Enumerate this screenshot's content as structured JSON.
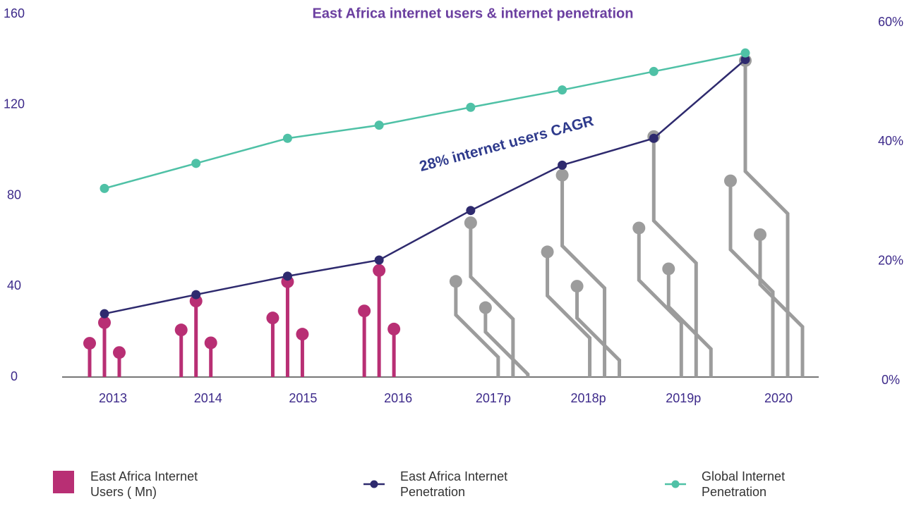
{
  "chart_data": {
    "type": "lollipop-line",
    "title": "East Africa internet users & internet penetration",
    "annotation": "28% internet users CAGR",
    "categories": [
      "2013",
      "2014",
      "2015",
      "2016",
      "2017p",
      "2018p",
      "2019p",
      "2020"
    ],
    "series": [
      {
        "name": "East Africa Internet Users ( Mn)",
        "color": "#b82f74",
        "colors": [
          "#b82f74",
          "#b82f74",
          "#b82f74",
          "#b82f74",
          "#9c9c9c",
          "#9c9c9c",
          "#9c9c9c",
          "#9c9c9c"
        ],
        "values": [
          24,
          33.5,
          42,
          47,
          68,
          89,
          106,
          139.5
        ]
      },
      {
        "name": "East Africa Internet Penetration",
        "color": "#2e2a6e",
        "axis": "y2",
        "values": [
          11.2,
          14.4,
          17.5,
          20.2,
          28.5,
          36.1,
          40.6,
          53.8
        ]
      },
      {
        "name": "Global Internet Penetration",
        "color": "#4fc1a6",
        "axis": "y2",
        "values": [
          32.2,
          36.4,
          40.6,
          42.8,
          45.8,
          48.7,
          51.8,
          54.9
        ]
      }
    ],
    "ylim": [
      0,
      160
    ],
    "yticks": [
      0,
      40,
      80,
      120,
      160
    ],
    "y2lim": [
      0,
      60
    ],
    "y2ticks": [
      {
        "value": 0,
        "label": "0%"
      },
      {
        "value": 20,
        "label": "20%"
      },
      {
        "value": 40,
        "label": "40%"
      },
      {
        "value": 60,
        "label": "60%"
      }
    ],
    "legend": "bottom"
  }
}
